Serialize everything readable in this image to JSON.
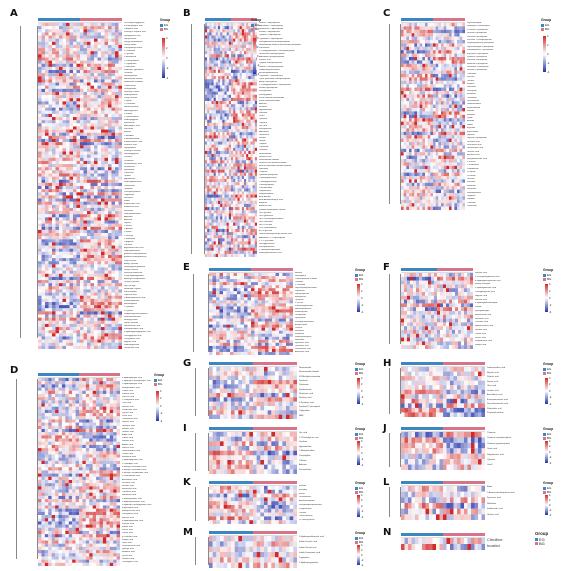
{
  "legend": {
    "title": "Group",
    "groups": [
      "EG",
      "BG"
    ],
    "colors": {
      "EG": "#3e86c2",
      "BG": "#d8748a",
      "high": "#d22a2a",
      "mid": "#ffffff",
      "low": "#2233aa"
    }
  },
  "scale_ticks": [
    "4",
    "2",
    "0",
    "-2",
    "-4"
  ],
  "panels": [
    {
      "id": "A",
      "rows": [
        "N-Phenylacetylglycine",
        "4-Phenylbutyric acid",
        "L-Aspartic acid",
        "N-acetyl-L-aspartic acid",
        "Pyroglutamic acid",
        "Glycylleucine",
        "Glycylphenylalanine",
        "Leucyl-Valine",
        "Phenylalanyl-Valine",
        "L-Threonine",
        "L-Tyrosine",
        "L-Methionine",
        "L-Phenylalanine",
        "L-Tryptophan",
        "L-Glutamine",
        "N-Acetyl-L-glutamine",
        "Ornithine",
        "Homocysteine",
        "Homoserine lactone",
        "Methionine sulfoxide",
        "L-Norleucine",
        "Leucylproline",
        "Isoleucyl-Proline",
        "N-Acetylserine",
        "Prolyl-Leucine",
        "L-Lysine",
        "L-Carnosine",
        "Homocarnosine",
        "Hydroxyproline",
        "L-Proline",
        "L-Cystathionine",
        "N-Acetylglycine",
        "Kynurenine",
        "Aminoadipic acid",
        "Sarcosine",
        "Betaine",
        "L-Histidine",
        "3-Methylhistidine",
        "Imidazolelactic acid",
        "Urocanic acid",
        "Glycylproline",
        "N-acetyl-L-leucine",
        "Dimethylglycine",
        "Creatine",
        "Creatinine",
        "Guanidoacetic acid",
        "Glutathione",
        "Spermidine",
        "Putrescine",
        "Taurine",
        "Hypotaurine",
        "N-Acetylputrescine",
        "Cadaverine",
        "Tyramine",
        "Phenylethylamine",
        "Tryptamine",
        "Serotonin",
        "Indole",
        "Indoleacetic acid",
        "Indolelactic acid",
        "Histamine",
        "N-Acetylhistamine",
        "Agmatine",
        "Anserine",
        "Glycine",
        "L-Serine",
        "L-Alanine",
        "L-Valine",
        "L-Leucine",
        "L-Isoleucine",
        "L-Arginine",
        "Citrulline",
        "Argininosuccinic acid",
        "N-Acetylornithine",
        "gamma-Glutamylalanine",
        "gamma-Glutamylleucine",
        "Valyl-Leucine",
        "Alanyl-Tyrosine",
        "Glutamylphenylalanine",
        "Leucyl-Leucine",
        "Isoleucyl-Isoleucine",
        "Prolyl-Hydroxyproline",
        "Aspartyl-Phenylalanine",
        "Tyrosyl-Tyrosine",
        "Gly-Pro-Hyp",
        "N6-Acetyl-L-lysine",
        "Saccharopine",
        "Pipecolic acid",
        "5-Aminopentanoic acid",
        "N-Methylalanine",
        "Homoarginine",
        "L-Cysteine",
        "L-Cystine",
        "S-Adenosylhomocysteine",
        "Selenomethionine",
        "Methylcysteine",
        "Glycyl-Tyrosine",
        "Homovanillic acid",
        "Vanillylmandelic acid",
        "4-Hydroxyphenylpyruvic acid",
        "Phenylpyruvic acid",
        "Phenyllactic acid",
        "Hippuric acid",
        "N-Acetyltyrosine",
        "Ophthalmic acid",
        "gamma-Glutamylcysteine"
      ]
    },
    {
      "id": "B",
      "rows": [
        "Uridine 5'-diphosphate",
        "Adenosine 5'-diphosphate",
        "Guanosine 5'-diphosphate",
        "Inosine 5'-diphosphate",
        "Cytidine 5'-diphosphate",
        "Thymidine 5'-diphosphate",
        "Deoxyadenosine monophosphate",
        "Nicotinamide adenine dinucleotide phosphate",
        "Xanthosine",
        "2'-Deoxyguanosine 5'-monophosphate",
        "Guanosine monophosphate",
        "Adenosine monophosphate",
        "Inosinic acid",
        "Cytidine monophosphate",
        "Uridine 5'-monophosphate",
        "S-Adenosylmethionine",
        "N6-Methyladenosine",
        "Thymidine 5'-triphosphate",
        "Cyclic guanosine monophosphate",
        "Acetyl coenzyme A",
        "2'-Deoxyguanosine 5'-diphosphate",
        "Inosine triphosphate",
        "Deoxyuridine",
        "Deoxycytidine",
        "Flavin adenine dinucleotide",
        "Flavin mononucleotide",
        "Adenine",
        "Guanine",
        "Hypoxanthine",
        "Xanthine",
        "Uracil",
        "Cytosine",
        "Thymine",
        "Uric acid",
        "Deoxyinosine",
        "Adenosine",
        "Guanosine",
        "Inosine",
        "Uridine",
        "Cytidine",
        "Thymidine",
        "Orotidine",
        "Nicotinamide",
        "Nicotinic acid",
        "Nicotinamide riboside",
        "Nicotinic acid mononucleotide",
        "beta-Nicotinamide mononucleotide",
        "Riboflavin",
        "Thiamine",
        "Pyridoxal phosphate",
        "1-Methyladenosine",
        "7-Methylguanosine",
        "5-Methylcytidine",
        "Pseudouridine",
        "Dihydrouracil",
        "Dihydrothymine",
        "beta-Alanine",
        "beta-Aminoisobutyric acid",
        "Allantoin",
        "Allantoic acid",
        "Cytidine diphosphate choline",
        "UDP-glucose",
        "UDP-galactose",
        "UDP-N-acetylglucosamine",
        "GDP-mannose",
        "GDP-L-fucose",
        "CDP-ethanolamine",
        "dTDP-glucose",
        "Uridine diphosphate glucuronic acid",
        "Adenosine 3',5'-diphosphate",
        "2',3'-Cyclic AMP",
        "Deoxyguanosine",
        "Deoxyadenosine",
        "5'-Methylthioadenosine",
        "N-Acetylneuraminic acid"
      ]
    },
    {
      "id": "C",
      "rows": [
        "Glyceraldehyde",
        "N-Acetyl-D-Glucosamine",
        "D-Ribose 5-phosphate",
        "Glucose 6-phosphate",
        "Fructose 6-phosphate",
        "Fructose 1,6-bisphosphate",
        "Dihydroxyacetone phosphate",
        "Glyceraldehyde 3-phosphate",
        "Sedoheptulose 7-phosphate",
        "Erythrose 4-phosphate",
        "Xylulose 5-phosphate",
        "Ribulose 5-phosphate",
        "Mannose 6-phosphate",
        "Galactose 1-phosphate",
        "Glucose 1-phosphate",
        "Trehalose",
        "Sucrose",
        "Lactose",
        "Maltose",
        "Raffinose",
        "Stachyose",
        "Melibiose",
        "Cellobiose",
        "Glucosamine",
        "Galactosamine",
        "Mannosamine",
        "Sorbitol",
        "Mannitol",
        "Xylitol",
        "Arabitol",
        "Ribitol",
        "Erythritol",
        "myo-Inositol",
        "Glycerol",
        "Glycerol 3-phosphate",
        "Gluconic acid",
        "Glucuronic acid",
        "Galacturonic acid",
        "Glucaric acid",
        "Ascorbic acid",
        "Dehydroascorbic acid",
        "L-Fucose",
        "L-Rhamnose",
        "D-Arabinose",
        "D-Xylose",
        "D-Ribose",
        "Glucose",
        "Fructose",
        "Mannose",
        "Galactose",
        "Sedoheptulose",
        "Tagatose",
        "Sorbose",
        "Turanose",
        "Palatinose"
      ]
    },
    {
      "id": "D",
      "rows": [
        "3-Hydroxybutyric acid",
        "2-Hydroxy-3-methylbutyric acid",
        "2-Hydroxybutyric acid",
        "Methylmalonic acid",
        "L-Malic acid",
        "Fumaric acid",
        "Succinic acid",
        "2-Oxoglutaric acid",
        "Citric acid",
        "Isocitric acid",
        "cis-Aconitic acid",
        "Pyruvic acid",
        "Lactic acid",
        "Oxaloacetic acid",
        "Glycolic acid",
        "Glyoxylic acid",
        "Malonic acid",
        "Glutaric acid",
        "Adipic acid",
        "Pimelic acid",
        "Suberic acid",
        "Azelaic acid",
        "Sebacic acid",
        "Dodecanedioic acid",
        "Tartaric acid",
        "Mevalonic acid",
        "2-Hydroxyglutaric acid",
        "2-Oxoadipic acid",
        "3-Methyl-2-oxovaleric acid",
        "4-Methyl-2-oxovaleric acid",
        "3-Methyl-2-oxobutanoic acid",
        "2-Oxobutanoic acid",
        "Acetoacetic acid",
        "Levulinic acid",
        "Itaconic acid",
        "Mesaconic acid",
        "Citramalic acid",
        "Homocitric acid",
        "2-Isopropylmalic acid",
        "3-Hydroxyisovaleric acid",
        "3-Hydroxy-3-methylglutaric acid",
        "Ethylmalonic acid",
        "Methylsuccinic acid",
        "Phenylacetic acid",
        "Benzoic acid",
        "4-Hydroxybenzoic acid",
        "Salicylic acid",
        "Vanillic acid",
        "Ferulic acid",
        "Caffeic acid",
        "p-Coumaric acid",
        "Sinapic acid",
        "Gallic acid",
        "Protocatechuic acid",
        "Syringic acid",
        "Mandelic acid",
        "Quinic acid",
        "Shikimic acid",
        "Chlorogenic acid"
      ]
    },
    {
      "id": "E",
      "rows": [
        "Betaine",
        "Stachydrine",
        "Trimethylamine N-oxide",
        "Carnitine",
        "L-Carnitine",
        "Glycerophosphocholine",
        "Dopamine",
        "Norepinephrine",
        "Epinephrine",
        "Tyramine",
        "L-DOPA",
        "3-Methoxytyramine",
        "Normetanephrine",
        "Metanephrine",
        "Octopamine",
        "Synephrine",
        "Phenylethanolamine",
        "Acetylcholine",
        "Choline",
        "Serotonin",
        "Melatonin",
        "N-Acetylserotonin",
        "Histamine",
        "Kynurenic acid",
        "Quinolinic acid",
        "Xanthurenic acid",
        "Anthranilic acid"
      ]
    },
    {
      "id": "F",
      "rows": [
        "Salicylic acid",
        "3,4-Dihydroxybenzoic acid",
        "4-Hydroxyphenylacetic acid",
        "Methyl salicylate",
        "3-Hydroxybenzoic acid",
        "Phenylpropanoic acid",
        "Hippuric acid",
        "Benzoic acid",
        "4-Hydroxybenzaldehyde",
        "Vanillin",
        "Syringaldehyde",
        "Homovanillic acid",
        "Isovanillic acid",
        "Cinnamic acid",
        "Hydrocinnamic acid",
        "Gentisic acid",
        "Caffeic acid",
        "Ferulic acid",
        "Dihydroferulic acid",
        "Sinapic acid"
      ]
    },
    {
      "id": "G",
      "rows": [
        "Nicotinamide",
        "Nicotinamide riboside",
        "N1-Methylnicotinamide",
        "Pyridoxal",
        "Pyridoxine",
        "Pyridoxamine",
        "Nicotinuric acid",
        "Nicotinic acid",
        "4-Pyridoxic acid",
        "Pyridoxal 5'-phosphate",
        "Trigonelline",
        "NAD"
      ]
    },
    {
      "id": "H",
      "rows": [
        "Dodecanedioic acid",
        "Myristic acid",
        "Palmitic acid",
        "Stearic acid",
        "Oleic acid",
        "Linoleic acid",
        "Arachidonic acid",
        "Eicosapentaenoic acid",
        "Docosahexaenoic acid",
        "Palmitoleic acid",
        "Propionylcarnitine"
      ]
    },
    {
      "id": "I",
      "rows": [
        "Uric acid",
        "1,7-Dimethyluric acid",
        "Xanthine",
        "Hypoxanthine",
        "7-Methylxanthine",
        "Theophylline",
        "Caffeine",
        "Adenine",
        "Paraxanthine"
      ]
    },
    {
      "id": "J",
      "rows": [
        "Thiamine",
        "Thiamine monophosphate",
        "Thiamine pyrophosphate",
        "Orotic acid",
        "Dihydroorotic acid",
        "Cytosine",
        "Uracil"
      ]
    },
    {
      "id": "K",
      "rows": [
        "Estrone",
        "Estradiol",
        "Estriol",
        "Testosterone",
        "Androstenedione",
        "Dehydroepiandrosterone",
        "Progesterone",
        "Cortisol",
        "Corticosterone",
        "11-Deoxycortisol"
      ]
    },
    {
      "id": "L",
      "rows": [
        "Biotin",
        "7-Aminocephalosporanic acid",
        "Kynurenic acid",
        "Riboflavin",
        "Indoleacetic acid",
        "Glutaric acid"
      ]
    },
    {
      "id": "M",
      "rows": [
        "5-Hydroxyindoleacetic acid",
        "Indole-3-acetic acid",
        "Indole-3-lactic acid",
        "Indole-3-propionic acid",
        "Tryptophan",
        "5-Hydroxytryptophan"
      ]
    },
    {
      "id": "N",
      "rows": [
        "Citrulline",
        "Inositol"
      ]
    }
  ]
}
